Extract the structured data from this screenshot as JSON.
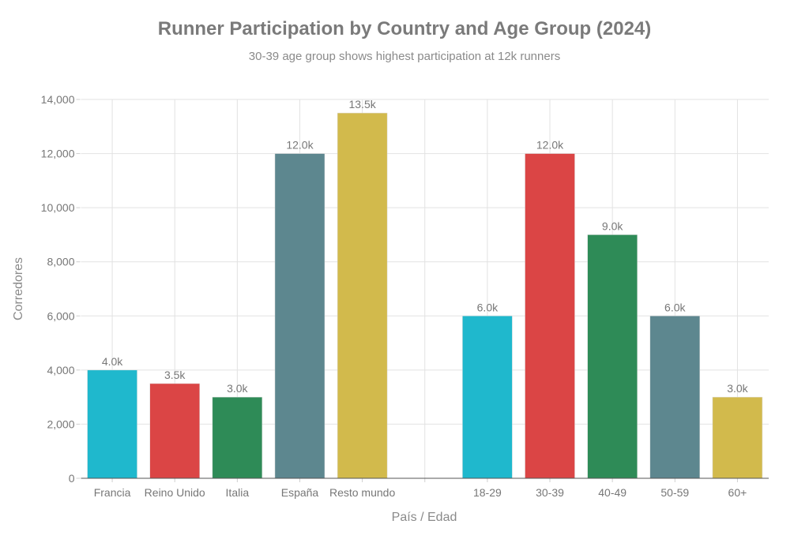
{
  "chart_data": {
    "type": "bar",
    "title": "Runner Participation by Country and Age Group (2024)",
    "subtitle": "30-39 age group shows highest participation at 12k runners",
    "xlabel": "País / Edad",
    "ylabel": "Corredores",
    "ylim": [
      0,
      14000
    ],
    "yticks": [
      0,
      2000,
      4000,
      6000,
      8000,
      10000,
      12000,
      14000
    ],
    "ytick_labels": [
      "0",
      "2,000",
      "4,000",
      "6,000",
      "8,000",
      "10,000",
      "12,000",
      "14,000"
    ],
    "grid": true,
    "categories": [
      "Francia",
      "Reino Unido",
      "Italia",
      "España",
      "Resto mundo",
      "",
      "18-29",
      "30-39",
      "40-49",
      "50-59",
      "60+"
    ],
    "values": [
      4000,
      3500,
      3000,
      12000,
      13500,
      null,
      6000,
      12000,
      9000,
      6000,
      3000
    ],
    "data_labels": [
      "4.0k",
      "3.5k",
      "3.0k",
      "12.0k",
      "13.5k",
      "",
      "6.0k",
      "12.0k",
      "9.0k",
      "6.0k",
      "3.0k"
    ],
    "colors": [
      "#1FB8CD",
      "#DB4545",
      "#2E8B57",
      "#5D878F",
      "#D2BA4C",
      "",
      "#1FB8CD",
      "#DB4545",
      "#2E8B57",
      "#5D878F",
      "#D2BA4C"
    ]
  }
}
